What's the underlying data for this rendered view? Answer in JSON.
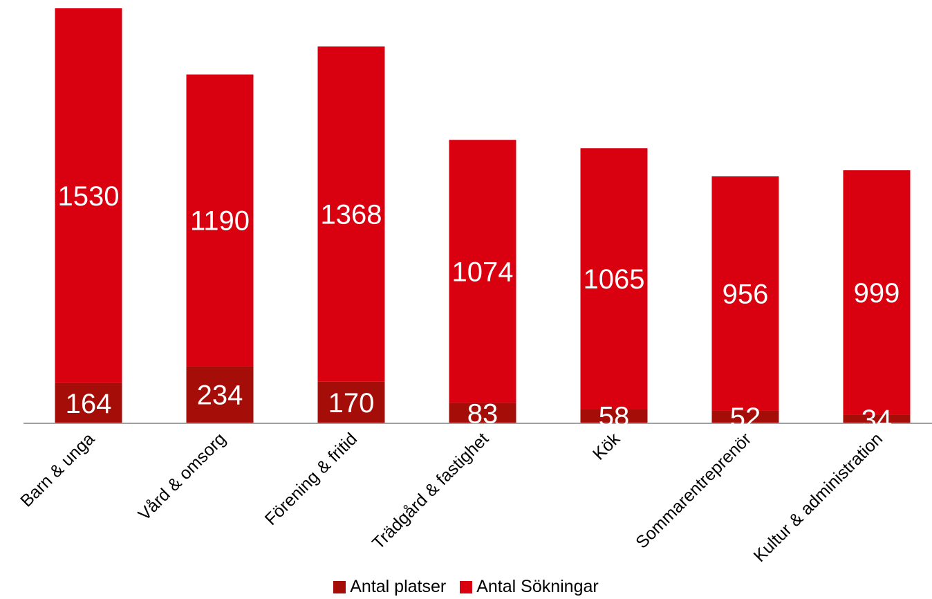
{
  "chart_data": {
    "type": "bar",
    "stacked": true,
    "categories": [
      "Barn & unga",
      "Vård & omsorg",
      "Förening & fritid",
      "Trädgård & fastighet",
      "Kök",
      "Sommarentreprenör",
      "Kultur & administration"
    ],
    "series": [
      {
        "name": "Antal platser",
        "color": "#a50d09",
        "values": [
          164,
          234,
          170,
          83,
          58,
          52,
          34
        ]
      },
      {
        "name": "Antal Sökningar",
        "color": "#d9000f",
        "values": [
          1530,
          1190,
          1368,
          1074,
          1065,
          956,
          999
        ]
      }
    ],
    "title": "",
    "xlabel": "",
    "ylabel": "",
    "ylim": [
      0,
      1694
    ],
    "grid": false,
    "legend_position": "bottom"
  }
}
